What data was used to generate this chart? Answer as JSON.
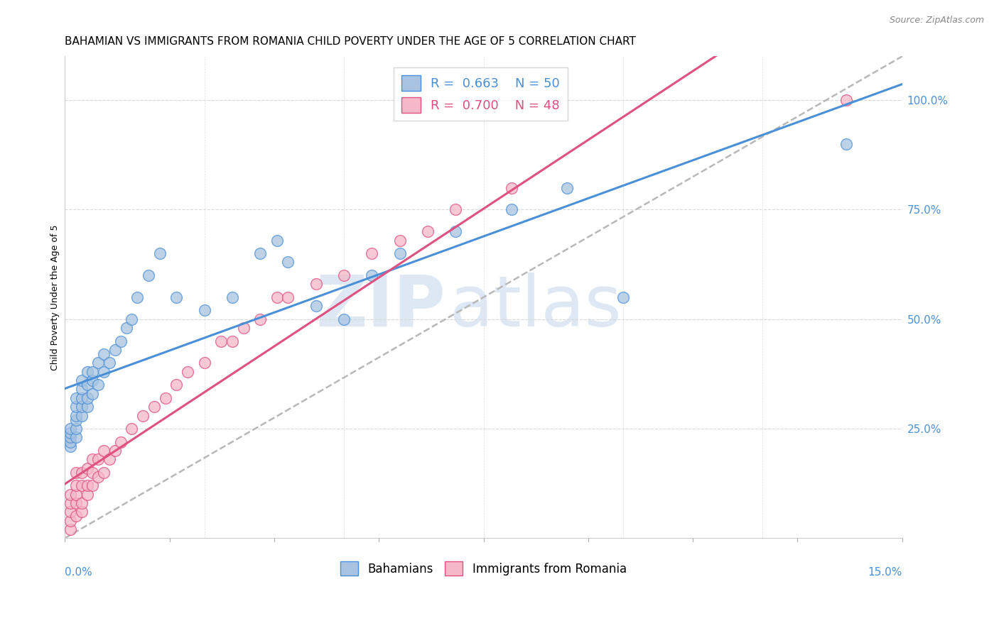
{
  "title": "BAHAMIAN VS IMMIGRANTS FROM ROMANIA CHILD POVERTY UNDER THE AGE OF 5 CORRELATION CHART",
  "source": "Source: ZipAtlas.com",
  "ylabel": "Child Poverty Under the Age of 5",
  "right_yticklabels": [
    "25.0%",
    "50.0%",
    "75.0%",
    "100.0%"
  ],
  "right_ytick_vals": [
    0.25,
    0.5,
    0.75,
    1.0
  ],
  "bahamians_color": "#a8c4e0",
  "romania_color": "#f4b8c8",
  "blue_line_color": "#4a90d9",
  "pink_line_color": "#e05080",
  "dashed_line_color": "#b8b8b8",
  "bahamians_x": [
    0.001,
    0.001,
    0.001,
    0.001,
    0.001,
    0.002,
    0.002,
    0.002,
    0.002,
    0.002,
    0.002,
    0.003,
    0.003,
    0.003,
    0.003,
    0.003,
    0.004,
    0.004,
    0.004,
    0.004,
    0.005,
    0.005,
    0.005,
    0.006,
    0.006,
    0.007,
    0.007,
    0.008,
    0.009,
    0.01,
    0.011,
    0.012,
    0.013,
    0.015,
    0.017,
    0.02,
    0.025,
    0.03,
    0.035,
    0.038,
    0.04,
    0.045,
    0.05,
    0.055,
    0.06,
    0.07,
    0.08,
    0.09,
    0.1,
    0.14
  ],
  "bahamians_y": [
    0.21,
    0.22,
    0.23,
    0.24,
    0.25,
    0.23,
    0.25,
    0.27,
    0.28,
    0.3,
    0.32,
    0.28,
    0.3,
    0.32,
    0.34,
    0.36,
    0.3,
    0.32,
    0.35,
    0.38,
    0.33,
    0.36,
    0.38,
    0.35,
    0.4,
    0.38,
    0.42,
    0.4,
    0.43,
    0.45,
    0.48,
    0.5,
    0.55,
    0.6,
    0.65,
    0.55,
    0.52,
    0.55,
    0.65,
    0.68,
    0.63,
    0.53,
    0.5,
    0.6,
    0.65,
    0.7,
    0.75,
    0.8,
    0.55,
    0.9
  ],
  "romania_x": [
    0.001,
    0.001,
    0.001,
    0.001,
    0.001,
    0.002,
    0.002,
    0.002,
    0.002,
    0.002,
    0.003,
    0.003,
    0.003,
    0.003,
    0.004,
    0.004,
    0.004,
    0.005,
    0.005,
    0.005,
    0.006,
    0.006,
    0.007,
    0.007,
    0.008,
    0.009,
    0.01,
    0.012,
    0.014,
    0.016,
    0.018,
    0.02,
    0.022,
    0.025,
    0.028,
    0.03,
    0.032,
    0.035,
    0.038,
    0.04,
    0.045,
    0.05,
    0.055,
    0.06,
    0.065,
    0.07,
    0.08,
    0.14
  ],
  "romania_y": [
    0.02,
    0.04,
    0.06,
    0.08,
    0.1,
    0.05,
    0.08,
    0.1,
    0.12,
    0.15,
    0.06,
    0.08,
    0.12,
    0.15,
    0.1,
    0.12,
    0.16,
    0.12,
    0.15,
    0.18,
    0.14,
    0.18,
    0.15,
    0.2,
    0.18,
    0.2,
    0.22,
    0.25,
    0.28,
    0.3,
    0.32,
    0.35,
    0.38,
    0.4,
    0.45,
    0.45,
    0.48,
    0.5,
    0.55,
    0.55,
    0.58,
    0.6,
    0.65,
    0.68,
    0.7,
    0.75,
    0.8,
    1.0
  ],
  "xlim": [
    0.0,
    0.15
  ],
  "ylim": [
    0.0,
    1.1
  ],
  "watermark_zip": "ZIP",
  "watermark_atlas": "atlas",
  "title_fontsize": 11,
  "axis_label_fontsize": 9,
  "legend_fontsize": 13
}
